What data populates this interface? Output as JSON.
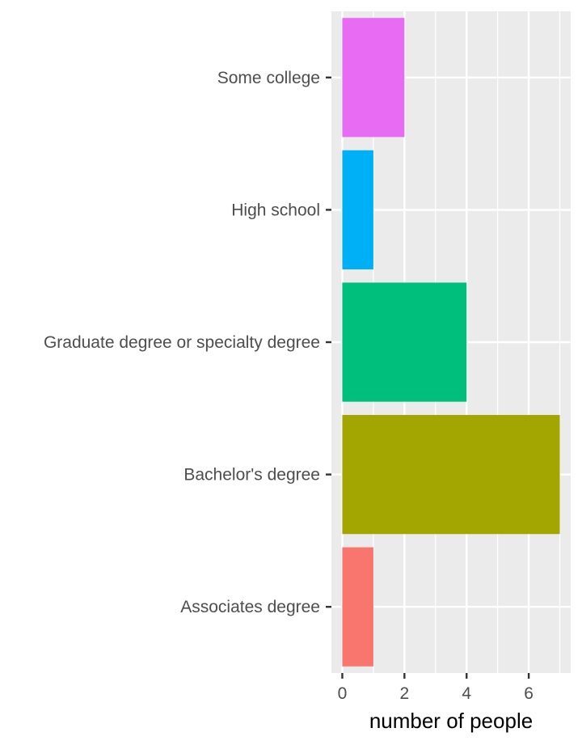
{
  "chart_data": {
    "type": "bar",
    "orientation": "horizontal",
    "categories": [
      "Associates degree",
      "Bachelor's degree",
      "Graduate degree or specialty degree",
      "High school",
      "Some college"
    ],
    "values": [
      1,
      7,
      4,
      1,
      2
    ],
    "colors": [
      "#F8766D",
      "#A3A500",
      "#00BF7D",
      "#00B0F6",
      "#E76BF3"
    ],
    "xlabel": "number of people",
    "ylabel": "",
    "xlim": [
      -0.35,
      7.35
    ],
    "xticks": [
      0,
      2,
      4,
      6
    ],
    "grid": true,
    "panel_background": "#EBEBEB",
    "grid_color": "#FFFFFF"
  }
}
